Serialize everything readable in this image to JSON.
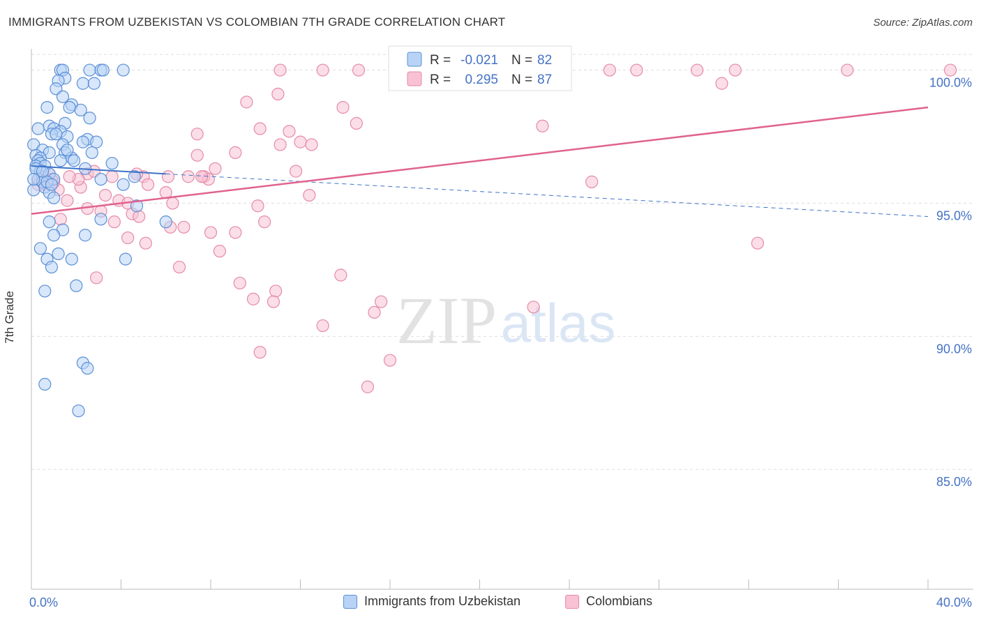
{
  "title": "IMMIGRANTS FROM UZBEKISTAN VS COLOMBIAN 7TH GRADE CORRELATION CHART",
  "source": "Source: ZipAtlas.com",
  "watermark": {
    "zip": "ZIP",
    "atlas": "atlas"
  },
  "colors": {
    "blue_fill": "#b8d3f5",
    "blue_stroke": "#5b8fd6",
    "blue_line": "#3d73c9",
    "pink_fill": "#f8c2d4",
    "pink_stroke": "#e58aa8",
    "pink_line": "#e0628e",
    "tick_label": "#4472c4",
    "grid": "#dddddd"
  },
  "legend": {
    "entries": [
      {
        "r_label": "R =",
        "r_value": "-0.021",
        "n_label": "N =",
        "n_value": "82"
      },
      {
        "r_label": "R =",
        "r_value": "0.295",
        "n_label": "N =",
        "n_value": "87"
      }
    ],
    "placement": "top-center"
  },
  "chart_data": {
    "type": "scatter",
    "title": "IMMIGRANTS FROM UZBEKISTAN VS COLOMBIAN 7TH GRADE CORRELATION CHART",
    "xlabel": "",
    "ylabel": "7th Grade",
    "xlim": [
      0,
      40
    ],
    "ylim": [
      80.5,
      100.8
    ],
    "x_tick_labels": [
      "0.0%",
      "40.0%"
    ],
    "y_ticks": [
      85,
      90,
      95,
      100
    ],
    "y_tick_labels": [
      "85.0%",
      "90.0%",
      "95.0%",
      "100.0%"
    ],
    "grid": true,
    "series": [
      {
        "name": "Immigrants from Uzbekistan",
        "color": "#b8d3f5",
        "trend": {
          "x": [
            0,
            6
          ],
          "y": [
            96.4,
            96.1
          ],
          "dashed_x": [
            6,
            40
          ],
          "dashed_y": [
            96.1,
            94.5
          ]
        },
        "points": [
          [
            1.3,
            100
          ],
          [
            1.4,
            100
          ],
          [
            2.6,
            100
          ],
          [
            3.1,
            100
          ],
          [
            3.2,
            100
          ],
          [
            4.1,
            100
          ],
          [
            1.5,
            99.7
          ],
          [
            1.2,
            99.6
          ],
          [
            2.3,
            99.5
          ],
          [
            2.8,
            99.5
          ],
          [
            1.1,
            99.3
          ],
          [
            1.4,
            99.0
          ],
          [
            1.8,
            98.7
          ],
          [
            0.7,
            98.6
          ],
          [
            1.7,
            98.6
          ],
          [
            2.2,
            98.5
          ],
          [
            2.6,
            98.2
          ],
          [
            1.5,
            98.0
          ],
          [
            0.8,
            97.9
          ],
          [
            0.3,
            97.8
          ],
          [
            1.0,
            97.8
          ],
          [
            1.3,
            97.7
          ],
          [
            0.9,
            97.6
          ],
          [
            1.1,
            97.6
          ],
          [
            1.6,
            97.5
          ],
          [
            2.5,
            97.4
          ],
          [
            2.3,
            97.3
          ],
          [
            0.1,
            97.2
          ],
          [
            1.4,
            97.2
          ],
          [
            0.5,
            97.0
          ],
          [
            0.8,
            96.9
          ],
          [
            1.5,
            96.9
          ],
          [
            2.7,
            96.9
          ],
          [
            0.2,
            96.8
          ],
          [
            0.4,
            96.7
          ],
          [
            1.8,
            96.7
          ],
          [
            0.3,
            96.6
          ],
          [
            1.3,
            96.6
          ],
          [
            1.9,
            96.6
          ],
          [
            0.4,
            96.5
          ],
          [
            3.6,
            96.5
          ],
          [
            0.2,
            96.4
          ],
          [
            0.6,
            96.4
          ],
          [
            2.4,
            96.3
          ],
          [
            0.4,
            96.2
          ],
          [
            0.8,
            96.1
          ],
          [
            4.6,
            96.0
          ],
          [
            0.3,
            95.9
          ],
          [
            1.0,
            95.9
          ],
          [
            3.1,
            95.9
          ],
          [
            0.5,
            95.8
          ],
          [
            4.1,
            95.7
          ],
          [
            0.6,
            95.6
          ],
          [
            0.1,
            95.5
          ],
          [
            0.8,
            95.4
          ],
          [
            1.0,
            95.2
          ],
          [
            4.7,
            94.9
          ],
          [
            3.1,
            94.4
          ],
          [
            0.8,
            94.3
          ],
          [
            6.0,
            94.3
          ],
          [
            1.4,
            94.0
          ],
          [
            1.0,
            93.8
          ],
          [
            2.4,
            93.8
          ],
          [
            0.4,
            93.3
          ],
          [
            1.2,
            93.1
          ],
          [
            0.7,
            92.9
          ],
          [
            1.8,
            92.9
          ],
          [
            4.2,
            92.9
          ],
          [
            0.9,
            92.6
          ],
          [
            2.0,
            91.9
          ],
          [
            0.6,
            91.7
          ],
          [
            2.3,
            89.0
          ],
          [
            2.5,
            88.8
          ],
          [
            0.6,
            88.2
          ],
          [
            2.1,
            87.2
          ],
          [
            0.2,
            96.3
          ],
          [
            0.7,
            95.8
          ],
          [
            1.6,
            97.0
          ],
          [
            2.9,
            97.3
          ],
          [
            0.1,
            95.9
          ],
          [
            0.5,
            96.2
          ],
          [
            0.9,
            95.7
          ]
        ]
      },
      {
        "name": "Colombians",
        "color": "#f8c2d4",
        "trend": {
          "x": [
            0,
            40
          ],
          "y": [
            94.6,
            98.6
          ]
        },
        "points": [
          [
            11.1,
            100
          ],
          [
            13.0,
            100
          ],
          [
            14.6,
            100
          ],
          [
            16.3,
            100
          ],
          [
            19.7,
            100
          ],
          [
            25.8,
            100
          ],
          [
            27.0,
            100
          ],
          [
            29.7,
            100
          ],
          [
            31.4,
            100
          ],
          [
            36.4,
            100
          ],
          [
            41.0,
            100
          ],
          [
            30.8,
            99.5
          ],
          [
            11.0,
            99.1
          ],
          [
            9.6,
            98.8
          ],
          [
            13.9,
            98.6
          ],
          [
            14.5,
            98.0
          ],
          [
            22.8,
            97.9
          ],
          [
            10.2,
            97.8
          ],
          [
            11.5,
            97.7
          ],
          [
            7.4,
            97.6
          ],
          [
            11.1,
            97.2
          ],
          [
            12.0,
            97.3
          ],
          [
            12.5,
            97.2
          ],
          [
            9.1,
            96.9
          ],
          [
            7.4,
            96.8
          ],
          [
            8.2,
            96.3
          ],
          [
            11.8,
            96.2
          ],
          [
            5.0,
            96.0
          ],
          [
            6.1,
            96.0
          ],
          [
            7.0,
            96.0
          ],
          [
            7.7,
            96.0
          ],
          [
            7.9,
            95.9
          ],
          [
            3.6,
            96.0
          ],
          [
            4.7,
            96.1
          ],
          [
            2.5,
            96.1
          ],
          [
            25.0,
            95.8
          ],
          [
            0.8,
            96.1
          ],
          [
            1.2,
            95.5
          ],
          [
            2.2,
            95.6
          ],
          [
            2.1,
            95.9
          ],
          [
            5.2,
            95.7
          ],
          [
            6.0,
            95.4
          ],
          [
            3.3,
            95.3
          ],
          [
            12.4,
            95.3
          ],
          [
            1.6,
            95.1
          ],
          [
            3.9,
            95.1
          ],
          [
            6.3,
            95.0
          ],
          [
            4.3,
            95.0
          ],
          [
            10.1,
            94.9
          ],
          [
            2.5,
            94.8
          ],
          [
            3.1,
            94.7
          ],
          [
            4.5,
            94.6
          ],
          [
            4.8,
            94.5
          ],
          [
            1.3,
            94.4
          ],
          [
            3.7,
            94.3
          ],
          [
            10.4,
            94.3
          ],
          [
            6.2,
            94.1
          ],
          [
            6.8,
            94.1
          ],
          [
            8.0,
            93.9
          ],
          [
            9.1,
            93.9
          ],
          [
            4.3,
            93.7
          ],
          [
            5.1,
            93.5
          ],
          [
            32.4,
            93.5
          ],
          [
            8.4,
            93.2
          ],
          [
            6.6,
            92.6
          ],
          [
            13.8,
            92.3
          ],
          [
            2.9,
            92.2
          ],
          [
            9.3,
            92.0
          ],
          [
            10.9,
            91.7
          ],
          [
            9.9,
            91.4
          ],
          [
            10.8,
            91.3
          ],
          [
            15.6,
            91.3
          ],
          [
            15.3,
            90.9
          ],
          [
            22.4,
            91.1
          ],
          [
            13.0,
            90.4
          ],
          [
            10.2,
            89.4
          ],
          [
            16.0,
            89.1
          ],
          [
            15.0,
            88.1
          ],
          [
            0.4,
            95.9
          ],
          [
            0.6,
            95.7
          ],
          [
            1.0,
            95.8
          ],
          [
            1.7,
            96.0
          ],
          [
            0.5,
            96.0
          ],
          [
            7.6,
            96.0
          ],
          [
            2.8,
            96.2
          ],
          [
            0.9,
            95.9
          ],
          [
            0.3,
            95.7
          ]
        ]
      }
    ]
  }
}
